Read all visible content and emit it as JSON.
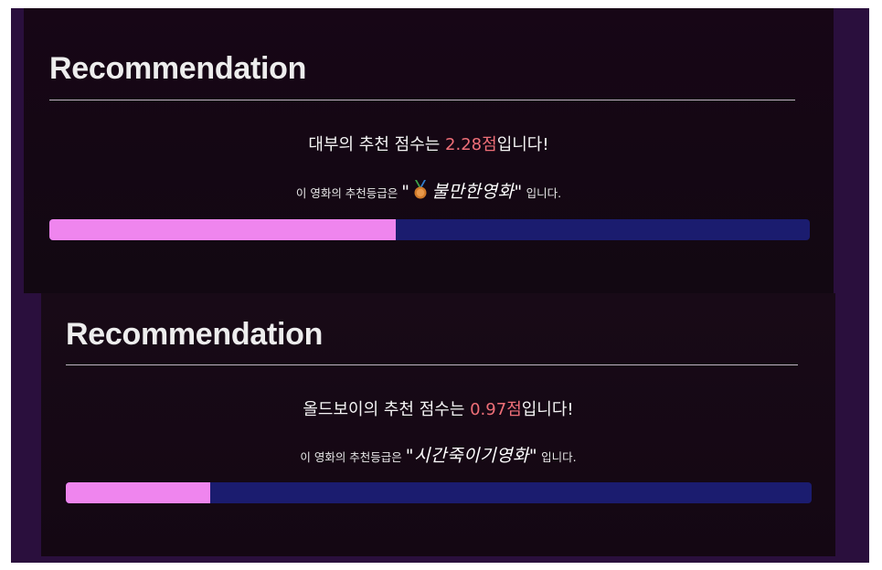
{
  "cards": [
    {
      "title": "Recommendation",
      "movie": "대부",
      "particle": "의",
      "score_prefix": " 추천 점수는 ",
      "score": "2.28점",
      "score_suffix": "입니다!",
      "grade_prefix": "이 영화의 추천등급은",
      "grade_quote_open": "\"",
      "grade_name": "불만한영화",
      "grade_quote_close": "\"",
      "grade_suffix": "입니다.",
      "grade_icon": "medal-icon",
      "progress": 0.456
    },
    {
      "title": "Recommendation",
      "movie": "올드보이",
      "particle": "의",
      "score_prefix": " 추천 점수는 ",
      "score": "0.97점",
      "score_suffix": "입니다!",
      "grade_prefix": "이 영화의 추천등급은",
      "grade_quote_open": "\"",
      "grade_name": "시간죽이기영화",
      "grade_quote_close": "\"",
      "grade_suffix": "입니다.",
      "progress": 0.194
    }
  ],
  "colors": {
    "score": "#ef6f78",
    "bar_track": "#1b1c6f",
    "bar_fill": "#ef85ee",
    "frame": "#2a0f3d"
  }
}
